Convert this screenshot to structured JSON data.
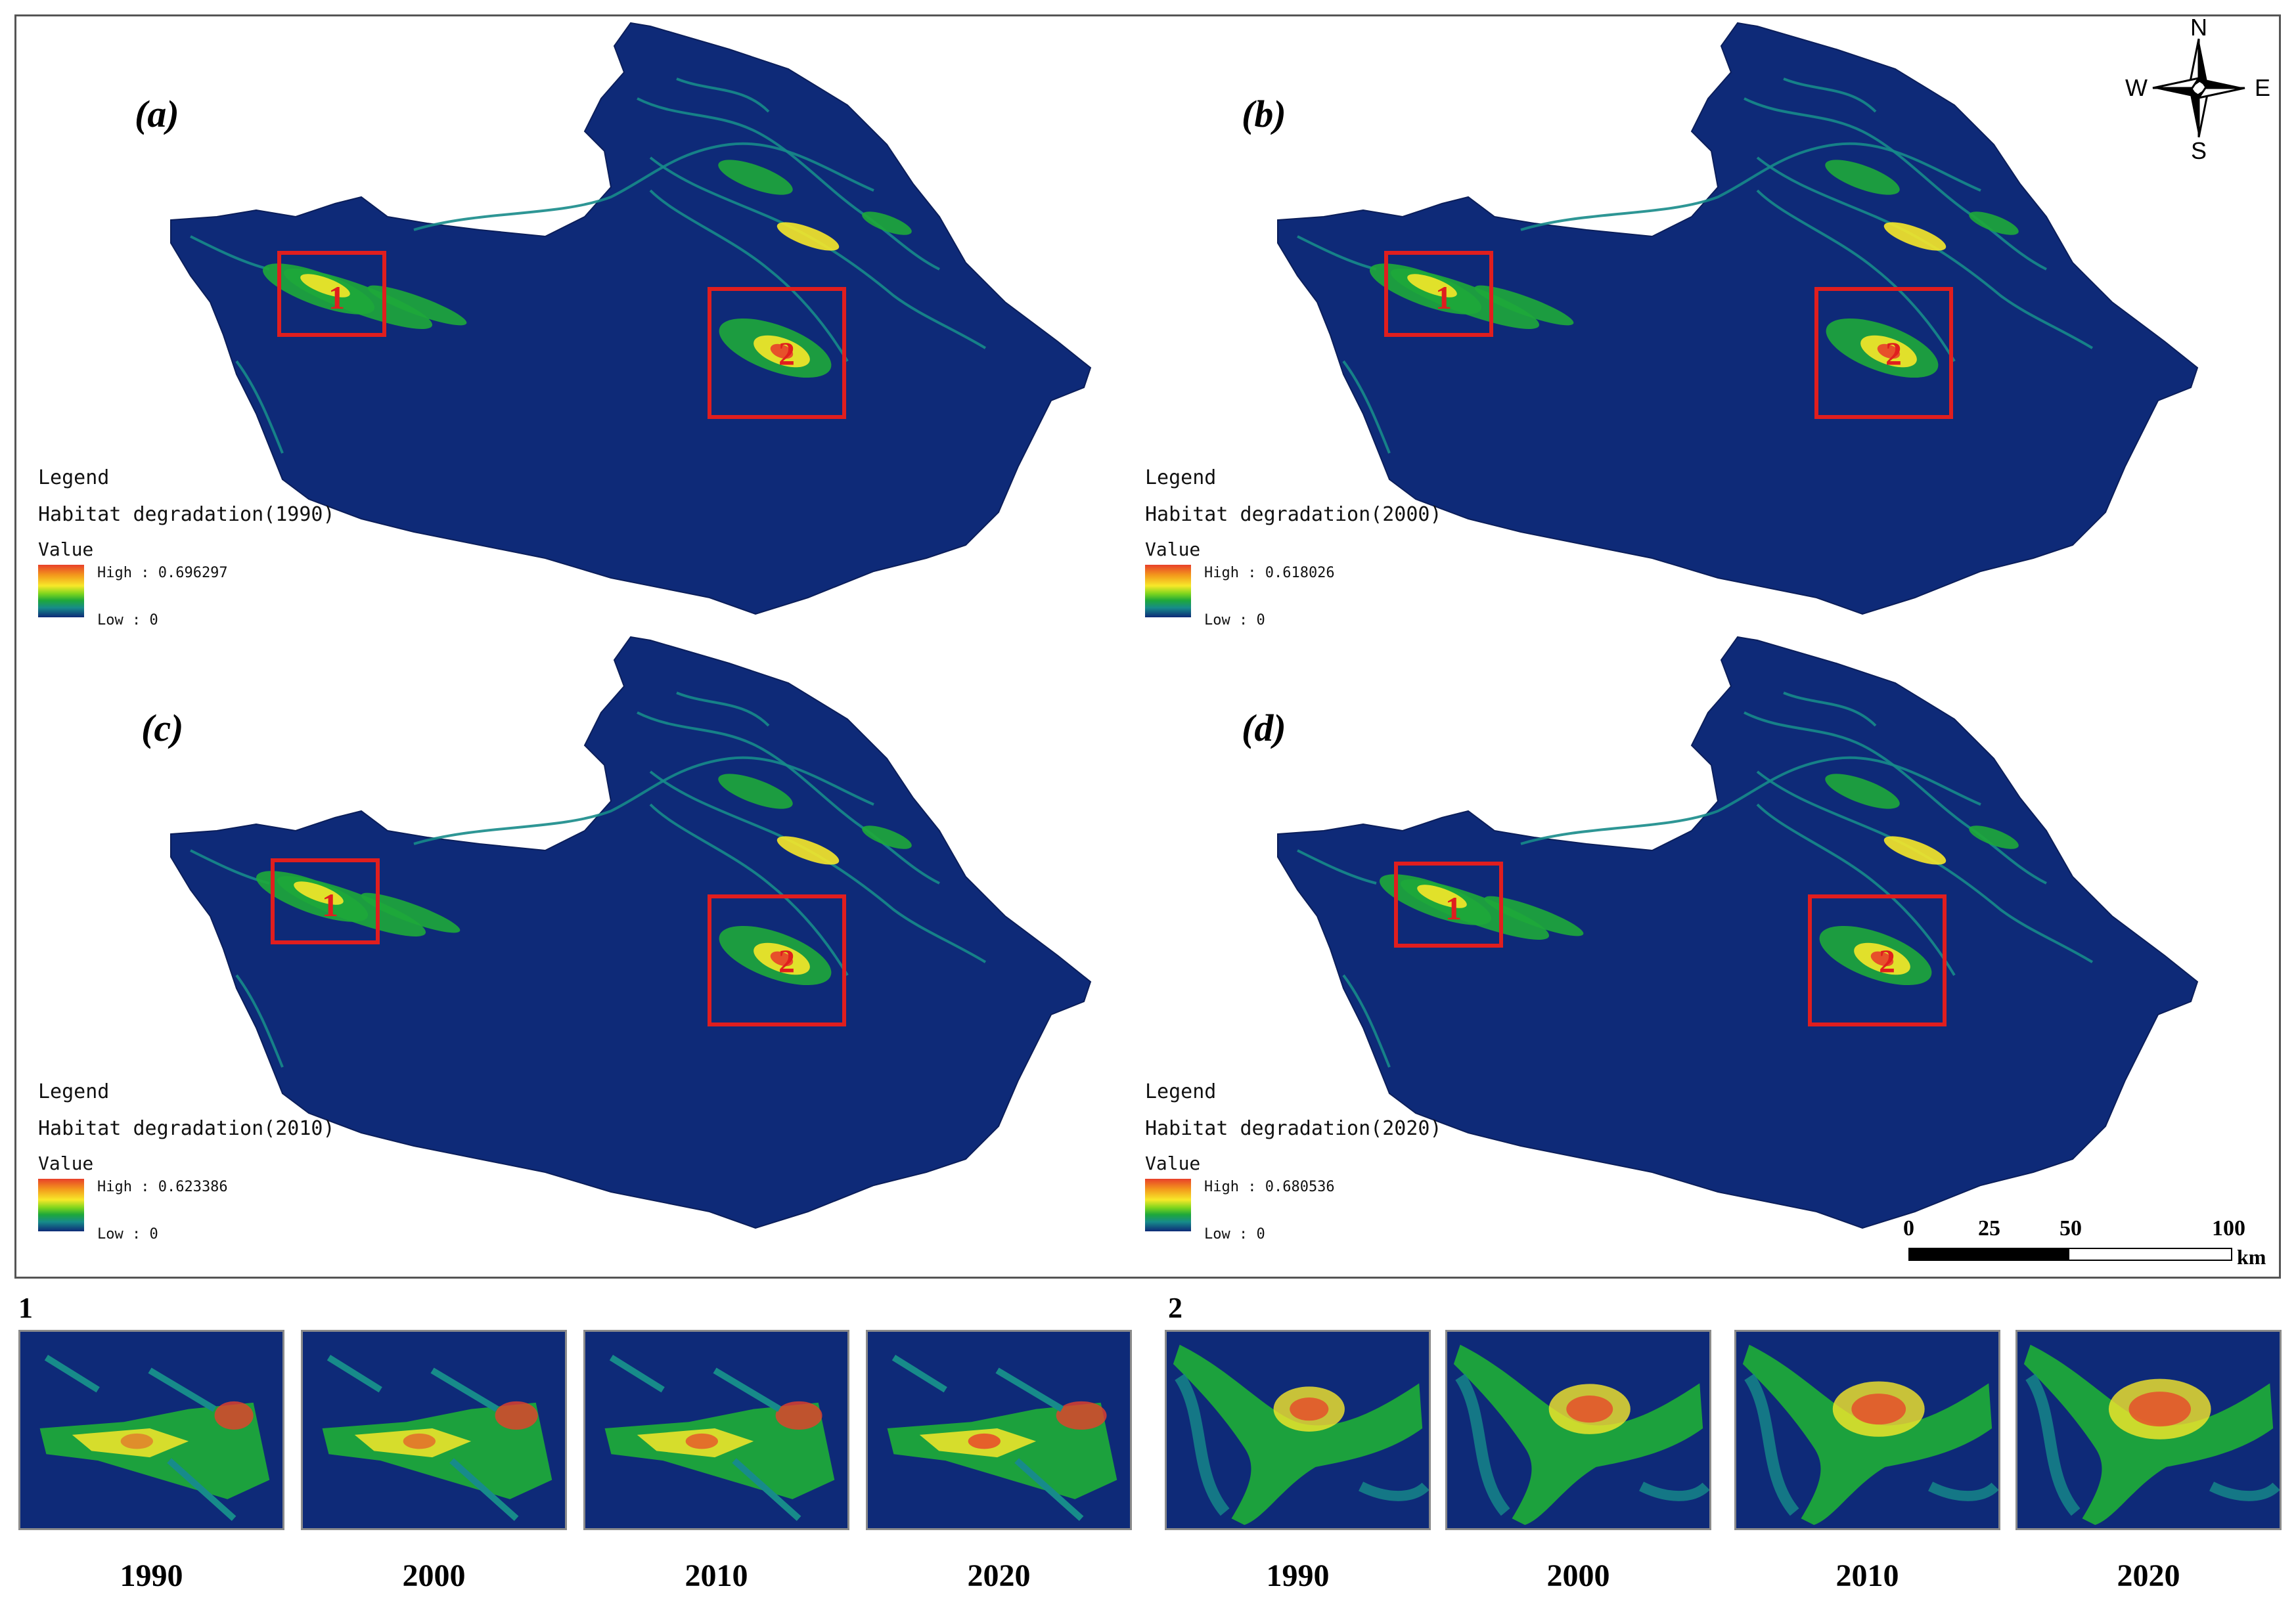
{
  "panels": [
    {
      "label": "(a)",
      "legend_title": "Legend",
      "legend_sub": "Habitat degradation(1990)",
      "value_label": "Value",
      "high": "High : 0.696297",
      "low": "Low : 0"
    },
    {
      "label": "(b)",
      "legend_title": "Legend",
      "legend_sub": "Habitat degradation(2000)",
      "value_label": "Value",
      "high": "High : 0.618026",
      "low": "Low : 0"
    },
    {
      "label": "(c)",
      "legend_title": "Legend",
      "legend_sub": "Habitat degradation(2010)",
      "value_label": "Value",
      "high": "High : 0.623386",
      "low": "Low : 0"
    },
    {
      "label": "(d)",
      "legend_title": "Legend",
      "legend_sub": "Habitat degradation(2020)",
      "value_label": "Value",
      "high": "High : 0.680536",
      "low": "Low : 0"
    }
  ],
  "box_labels": [
    "1",
    "2"
  ],
  "compass": {
    "n": "N",
    "s": "S",
    "e": "E",
    "w": "W"
  },
  "scalebar": {
    "ticks": [
      "0",
      "25",
      "50",
      "100"
    ],
    "unit": "km"
  },
  "zooms": [
    {
      "label": "1",
      "years": [
        "1990",
        "2000",
        "2010",
        "2020"
      ]
    },
    {
      "label": "2",
      "years": [
        "1990",
        "2000",
        "2010",
        "2020"
      ]
    }
  ],
  "colors": {
    "low": "#0e2a78",
    "mid_low": "#178b8a",
    "mid": "#1ea83a",
    "mid_high": "#f7e829",
    "high": "#e8402a",
    "box": "#e01e1e"
  }
}
